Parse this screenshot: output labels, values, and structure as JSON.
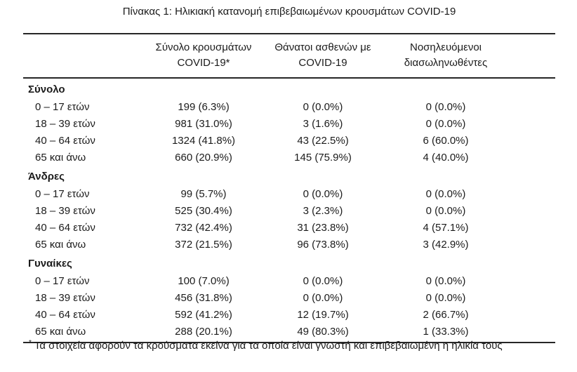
{
  "page": {
    "background_color": "#ffffff",
    "text_color": "#1b1b1b",
    "rule_color": "#262626"
  },
  "table": {
    "title": "Πίνακας 1: Ηλικιακή κατανομή επιβεβαιωμένων κρουσμάτων COVID-19",
    "columns": [
      {
        "line1": "Σύνολο κρουσμάτων",
        "line2": "COVID-19*"
      },
      {
        "line1": "Θάνατοι ασθενών με",
        "line2": "COVID-19"
      },
      {
        "line1": "Νοσηλευόμενοι",
        "line2": "διασωληνωθέντες"
      }
    ],
    "sections": [
      {
        "label": "Σύνολο",
        "rows": [
          {
            "age": "0 – 17 ετών",
            "cases": "199 (6.3%)",
            "deaths": "0 (0.0%)",
            "intubated": "0 (0.0%)"
          },
          {
            "age": "18 – 39 ετών",
            "cases": "981 (31.0%)",
            "deaths": "3 (1.6%)",
            "intubated": "0 (0.0%)"
          },
          {
            "age": "40 – 64 ετών",
            "cases": "1324 (41.8%)",
            "deaths": "43 (22.5%)",
            "intubated": "6 (60.0%)"
          },
          {
            "age": "65 και άνω",
            "cases": "660 (20.9%)",
            "deaths": "145 (75.9%)",
            "intubated": "4 (40.0%)"
          }
        ]
      },
      {
        "label": "Άνδρες",
        "rows": [
          {
            "age": "0 – 17 ετών",
            "cases": "99 (5.7%)",
            "deaths": "0 (0.0%)",
            "intubated": "0 (0.0%)"
          },
          {
            "age": "18 – 39 ετών",
            "cases": "525 (30.4%)",
            "deaths": "3 (2.3%)",
            "intubated": "0 (0.0%)"
          },
          {
            "age": "40 – 64 ετών",
            "cases": "732 (42.4%)",
            "deaths": "31 (23.8%)",
            "intubated": "4 (57.1%)"
          },
          {
            "age": "65 και άνω",
            "cases": "372 (21.5%)",
            "deaths": "96 (73.8%)",
            "intubated": "3 (42.9%)"
          }
        ]
      },
      {
        "label": "Γυναίκες",
        "rows": [
          {
            "age": "0 – 17 ετών",
            "cases": "100 (7.0%)",
            "deaths": "0 (0.0%)",
            "intubated": "0 (0.0%)"
          },
          {
            "age": "18 – 39 ετών",
            "cases": "456 (31.8%)",
            "deaths": "0 (0.0%)",
            "intubated": "0 (0.0%)"
          },
          {
            "age": "40 – 64 ετών",
            "cases": "592 (41.2%)",
            "deaths": "12 (19.7%)",
            "intubated": "2 (66.7%)"
          },
          {
            "age": "65 και άνω",
            "cases": "288 (20.1%)",
            "deaths": "49 (80.3%)",
            "intubated": "1 (33.3%)"
          }
        ]
      }
    ],
    "footnote": {
      "marker": "*",
      "text": "Τα στοιχεία αφορούν τα κρούσματα εκείνα για τα οποία είναι γνωστή και επιβεβαιωμένη η ηλικία τους"
    }
  }
}
